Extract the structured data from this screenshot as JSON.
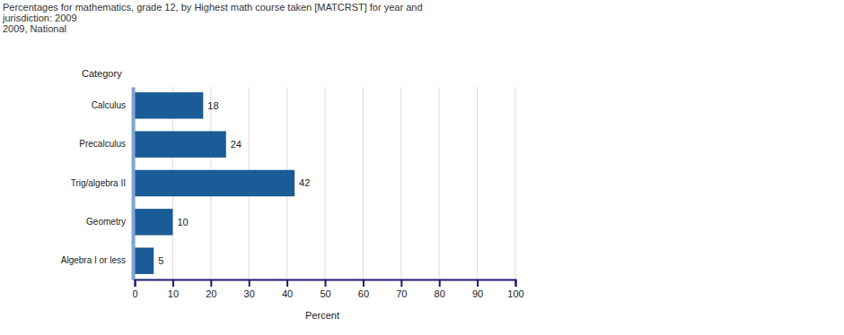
{
  "chart_data": {
    "type": "bar",
    "orientation": "horizontal",
    "title": "Percentages for mathematics, grade 12, by Highest math course taken [MATCRST] for year and jurisdiction: 2009",
    "subtitle": "2009, National",
    "y_label": "Category",
    "x_label": "Percent",
    "categories": [
      "Calculus",
      "Precalculus",
      "Trig/algebra II",
      "Geometry",
      "Algebra I or less"
    ],
    "values": [
      18,
      24,
      42,
      10,
      5
    ],
    "color": "#1b5b97",
    "xlim": [
      0,
      100
    ],
    "xticks": [
      0,
      10,
      20,
      30,
      40,
      50,
      60,
      70,
      80,
      90,
      100
    ],
    "grid": true,
    "data_labels": true
  }
}
